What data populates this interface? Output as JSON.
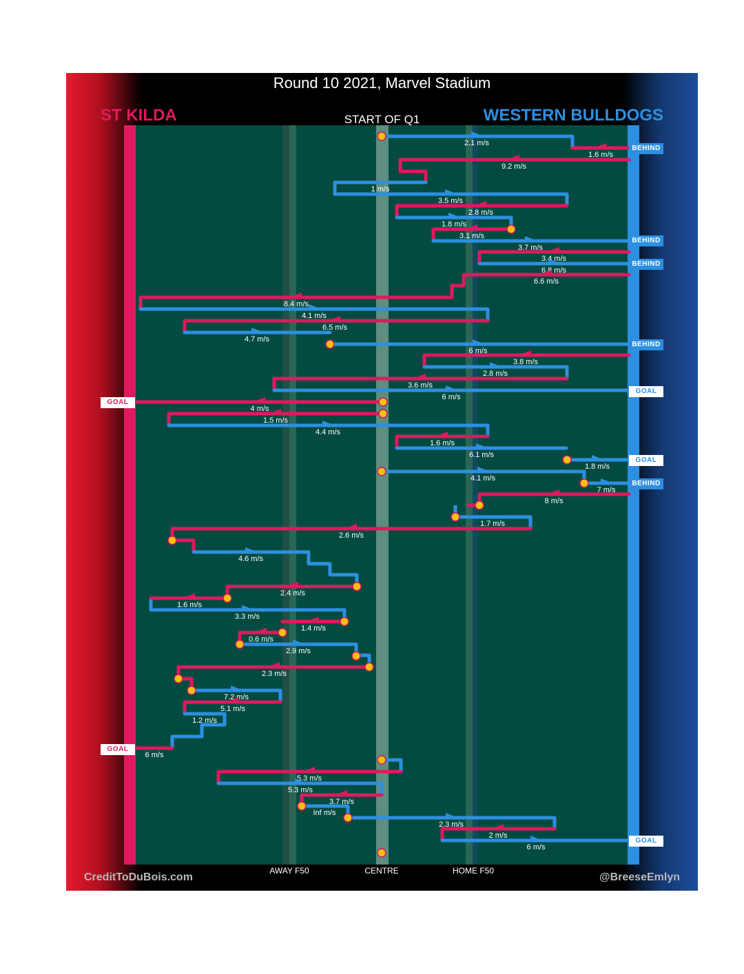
{
  "title": "Round 10 2021, Marvel Stadium",
  "teams": {
    "left": "ST KILDA",
    "right": "WESTERN BULLDOGS"
  },
  "period_label": "START OF Q1",
  "credits": {
    "left": "CreditToDuBois.com",
    "right": "@BreeseEmlyn"
  },
  "axis_labels": [
    "AWAY F50",
    "CENTRE",
    "HOME F50"
  ],
  "colors": {
    "st_kilda": "#e0195e",
    "bulldogs": "#2d8fe0",
    "field": "#034b40",
    "ball": "#f5c010"
  },
  "speeds": [
    "2.1 m/s",
    "1.6 m/s",
    "9.2 m/s",
    "1 m/s",
    "3.5 m/s",
    "2.8 m/s",
    "1.8 m/s",
    "3.1 m/s",
    "3.7 m/s",
    "3.4 m/s",
    "6.8 m/s",
    "6.6 m/s",
    "8.4 m/s",
    "4.1 m/s",
    "6.5 m/s",
    "4.7 m/s",
    "6 m/s",
    "3.8 m/s",
    "2.8 m/s",
    "3.6 m/s",
    "6 m/s",
    "4 m/s",
    "1.5 m/s",
    "4.4 m/s",
    "1.6 m/s",
    "6.1 m/s",
    "1.8 m/s",
    "4.1 m/s",
    "7 m/s",
    "8 m/s",
    "1.7 m/s",
    "2.6 m/s",
    "4.6 m/s",
    "2.4 m/s",
    "1.6 m/s",
    "3.3 m/s",
    "1.4 m/s",
    "0.6 m/s",
    "2.9 m/s",
    "2.3 m/s",
    "7.2 m/s",
    "5.1 m/s",
    "1.2 m/s",
    "6 m/s",
    "5.3 m/s",
    "5.3 m/s",
    "3.7 m/s",
    "Inf m/s",
    "2.3 m/s",
    "2 m/s",
    "6 m/s"
  ],
  "results": [
    "BEHIND",
    "BEHIND",
    "BEHIND",
    "BEHIND",
    "GOAL",
    "GOAL",
    "GOAL",
    "BEHIND",
    "GOAL",
    "GOAL"
  ]
}
